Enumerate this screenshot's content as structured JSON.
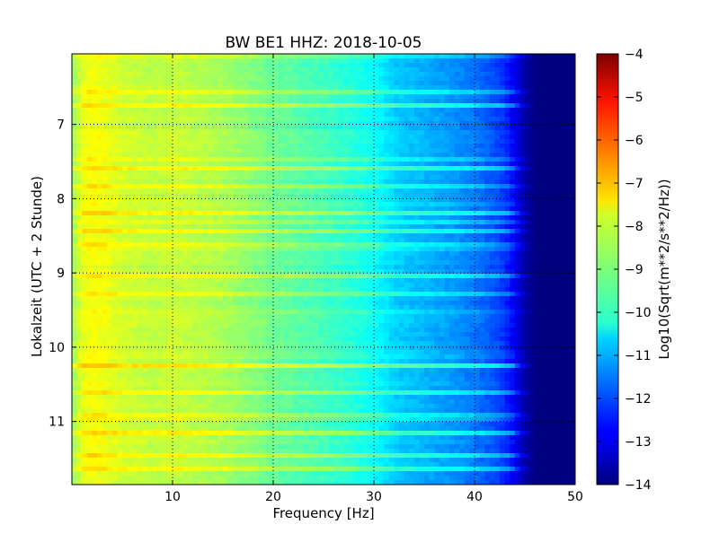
{
  "chart_data": {
    "type": "heatmap",
    "title": "BW BE1 HHZ: 2018-10-05",
    "xlabel": "Frequency [Hz]",
    "ylabel": "Lokalzeit (UTC + 2 Stunde)",
    "xlim": [
      0,
      50
    ],
    "ylim": [
      11.85,
      6.05
    ],
    "x_ticks": [
      10,
      20,
      30,
      40,
      50
    ],
    "y_ticks": [
      7,
      8,
      9,
      10,
      11
    ],
    "grid": true,
    "colormap": "jet",
    "colorbar": {
      "label": "Log10(Sqrt(m**2/s**2/Hz))",
      "vmin": -14,
      "vmax": -4,
      "ticks": [
        -4,
        -5,
        -6,
        -7,
        -8,
        -9,
        -10,
        -11,
        -12,
        -13,
        -14
      ]
    },
    "spectrum_profile": {
      "frequency_hz": [
        0,
        1,
        2,
        3,
        5,
        8,
        10,
        15,
        20,
        25,
        28,
        30,
        32,
        35,
        38,
        40,
        42,
        43,
        44,
        45,
        46,
        50
      ],
      "level": [
        -8.8,
        -8.0,
        -7.8,
        -7.9,
        -8.2,
        -8.4,
        -8.3,
        -8.6,
        -9.2,
        -9.6,
        -9.9,
        -10.2,
        -10.7,
        -11.0,
        -11.3,
        -11.6,
        -12.0,
        -12.3,
        -12.9,
        -13.6,
        -14.0,
        -14.0
      ]
    },
    "horizontal_bands_hour": [
      6.1,
      6.55,
      6.75,
      7.45,
      7.6,
      7.85,
      8.05,
      8.2,
      8.3,
      8.45,
      8.6,
      8.7,
      9.05,
      9.3,
      9.55,
      10.1,
      10.25,
      10.6,
      10.9,
      11.0,
      11.15,
      11.45,
      11.65
    ]
  }
}
